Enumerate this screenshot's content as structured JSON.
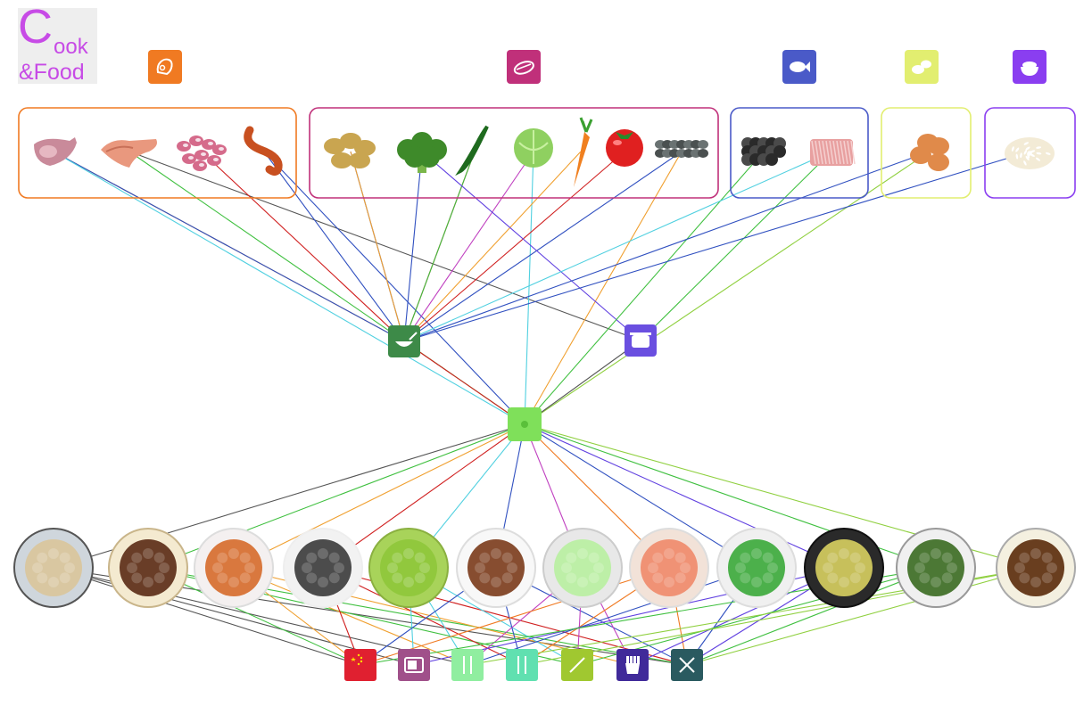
{
  "logo": {
    "big_letter": "C",
    "rest": "ook",
    "line2": "&Food",
    "color": "#c74be6"
  },
  "colors": {
    "meat": "#f07a22",
    "vegetable": "#c0307a",
    "seafood": "#4a5ac8",
    "egg": "#e2ee70",
    "staple": "#8a3ef0",
    "method_stir_fry": "#3d8a48",
    "method_stew": "#6a4fe0",
    "hub": "#7fe05a",
    "cuisine": [
      "#e02030",
      "#a0508a",
      "#90eea0",
      "#60e0b0",
      "#a0c830",
      "#402a9a",
      "#2a5a60"
    ]
  },
  "categories": [
    {
      "id": "meat",
      "icon": "meat-icon",
      "color": "#f07a22",
      "items": [
        {
          "id": "pork",
          "icon": "pork-chop-icon"
        },
        {
          "id": "chicken_wing",
          "icon": "chicken-wing-icon"
        },
        {
          "id": "beans",
          "icon": "beans-icon"
        },
        {
          "id": "sausage",
          "icon": "sausage-icon"
        }
      ]
    },
    {
      "id": "vegetable",
      "icon": "vegetable-icon",
      "color": "#c0307a",
      "items": [
        {
          "id": "potato",
          "icon": "potato-icon"
        },
        {
          "id": "broccoli",
          "icon": "broccoli-icon"
        },
        {
          "id": "pepper",
          "icon": "green-pepper-icon"
        },
        {
          "id": "cabbage",
          "icon": "cabbage-icon"
        },
        {
          "id": "carrot",
          "icon": "carrot-icon"
        },
        {
          "id": "tomato",
          "icon": "tomato-icon"
        },
        {
          "id": "fungus",
          "icon": "black-fungus-icon"
        }
      ]
    },
    {
      "id": "seafood",
      "icon": "fish-icon",
      "color": "#4a5ac8",
      "items": [
        {
          "id": "seaweed",
          "icon": "seaweed-icon"
        },
        {
          "id": "shrimp",
          "icon": "dried-shrimp-icon"
        }
      ]
    },
    {
      "id": "egg",
      "icon": "egg-icon",
      "color": "#e2ee70",
      "items": [
        {
          "id": "eggs",
          "icon": "eggs-icon"
        }
      ]
    },
    {
      "id": "staple",
      "icon": "rice-bowl-icon",
      "color": "#8a3ef0",
      "items": [
        {
          "id": "rice",
          "icon": "rice-icon"
        }
      ]
    }
  ],
  "methods": [
    {
      "id": "stir_fry",
      "icon": "wok-icon",
      "color": "#3d8a48"
    },
    {
      "id": "stew",
      "icon": "pot-icon",
      "color": "#6a4fe0"
    }
  ],
  "hub": {
    "id": "hub",
    "icon": "hub-icon",
    "color": "#7fe05a"
  },
  "dishes": [
    {
      "id": "chicken_soup",
      "icon": "chicken-soup-icon"
    },
    {
      "id": "braised_wings",
      "icon": "braised-wings-icon"
    },
    {
      "id": "carrot_potato",
      "icon": "carrot-potato-dish-icon"
    },
    {
      "id": "fungus_stirfry",
      "icon": "fungus-stirfry-icon"
    },
    {
      "id": "pepper_strips",
      "icon": "pepper-strips-icon"
    },
    {
      "id": "grilled_chicken",
      "icon": "grilled-chicken-icon"
    },
    {
      "id": "cabbage_dish",
      "icon": "cabbage-dish-icon"
    },
    {
      "id": "tomato_potato",
      "icon": "tomato-potato-icon"
    },
    {
      "id": "broccoli_dish",
      "icon": "broccoli-dish-icon"
    },
    {
      "id": "fried_rice",
      "icon": "fried-rice-icon"
    },
    {
      "id": "seaweed_soup",
      "icon": "seaweed-soup-icon"
    },
    {
      "id": "tea_eggs",
      "icon": "tea-eggs-icon"
    }
  ],
  "cuisines": [
    {
      "id": "chinese",
      "icon": "china-flag-icon",
      "color": "#e02030"
    },
    {
      "id": "microwave",
      "icon": "microwave-icon",
      "color": "#a0508a"
    },
    {
      "id": "light",
      "icon": "fork-knife-icon",
      "color": "#90eea0"
    },
    {
      "id": "chopsticks",
      "icon": "chopsticks-icon",
      "color": "#60e0b0"
    },
    {
      "id": "quick",
      "icon": "spatula-icon",
      "color": "#a0c830"
    },
    {
      "id": "fastfood",
      "icon": "fries-icon",
      "color": "#402a9a"
    },
    {
      "id": "western",
      "icon": "knife-fork-icon",
      "color": "#2a5a60"
    }
  ],
  "links": [
    [
      "pork",
      "stir_fry",
      "#f0a030"
    ],
    [
      "pork",
      "stir_fry",
      "#3050c0"
    ],
    [
      "pork",
      "hub",
      "#50d0e0"
    ],
    [
      "chicken_wing",
      "stew",
      "#555555"
    ],
    [
      "chicken_wing",
      "hub",
      "#40c040"
    ],
    [
      "beans",
      "stir_fry",
      "#d02020"
    ],
    [
      "sausage",
      "stir_fry",
      "#3050c0"
    ],
    [
      "sausage",
      "hub",
      "#3050c0"
    ],
    [
      "potato",
      "stir_fry",
      "#3050c0"
    ],
    [
      "potato",
      "stir_fry",
      "#f0a030"
    ],
    [
      "broccoli",
      "stir_fry",
      "#3050c0"
    ],
    [
      "pepper",
      "stir_fry",
      "#d02020"
    ],
    [
      "pepper",
      "stir_fry",
      "#40c040"
    ],
    [
      "cabbage",
      "stir_fry",
      "#c040c0"
    ],
    [
      "cabbage",
      "hub",
      "#50d0e0"
    ],
    [
      "carrot",
      "stir_fry",
      "#f0a030"
    ],
    [
      "tomato",
      "stir_fry",
      "#d02020"
    ],
    [
      "fungus",
      "stir_fry",
      "#3050c0"
    ],
    [
      "fungus",
      "hub",
      "#f0a030"
    ],
    [
      "broccoli",
      "stew",
      "#6040e0"
    ],
    [
      "seaweed",
      "hub",
      "#40c040"
    ],
    [
      "shrimp",
      "stir_fry",
      "#50d0e0"
    ],
    [
      "shrimp",
      "stew",
      "#40c040"
    ],
    [
      "eggs",
      "stir_fry",
      "#3050c0"
    ],
    [
      "eggs",
      "hub",
      "#90d040"
    ],
    [
      "rice",
      "stir_fry",
      "#3050c0"
    ],
    [
      "stir_fry",
      "hub",
      "#d02020"
    ],
    [
      "stew",
      "hub",
      "#555555"
    ],
    [
      "hub",
      "chicken_soup",
      "#555555"
    ],
    [
      "hub",
      "braised_wings",
      "#40c040"
    ],
    [
      "hub",
      "carrot_potato",
      "#f0a030"
    ],
    [
      "hub",
      "fungus_stirfry",
      "#d02020"
    ],
    [
      "hub",
      "pepper_strips",
      "#50d0e0"
    ],
    [
      "hub",
      "grilled_chicken",
      "#3050c0"
    ],
    [
      "hub",
      "cabbage_dish",
      "#c040c0"
    ],
    [
      "hub",
      "tomato_potato",
      "#f07a22"
    ],
    [
      "hub",
      "broccoli_dish",
      "#3050c0"
    ],
    [
      "hub",
      "fried_rice",
      "#6040e0"
    ],
    [
      "hub",
      "seaweed_soup",
      "#40c040"
    ],
    [
      "hub",
      "tea_eggs",
      "#90d040"
    ],
    [
      "chicken_soup",
      "chinese",
      "#555555"
    ],
    [
      "chicken_soup",
      "microwave",
      "#555555"
    ],
    [
      "chicken_soup",
      "light",
      "#555555"
    ],
    [
      "chicken_soup",
      "western",
      "#555555"
    ],
    [
      "braised_wings",
      "chinese",
      "#40c040"
    ],
    [
      "braised_wings",
      "quick",
      "#40c040"
    ],
    [
      "braised_wings",
      "western",
      "#40c040"
    ],
    [
      "carrot_potato",
      "chinese",
      "#f0a030"
    ],
    [
      "carrot_potato",
      "light",
      "#f0a030"
    ],
    [
      "carrot_potato",
      "fastfood",
      "#f0a030"
    ],
    [
      "fungus_stirfry",
      "chinese",
      "#d02020"
    ],
    [
      "fungus_stirfry",
      "chopsticks",
      "#d02020"
    ],
    [
      "fungus_stirfry",
      "western",
      "#d02020"
    ],
    [
      "pepper_strips",
      "microwave",
      "#50d0e0"
    ],
    [
      "pepper_strips",
      "light",
      "#50d0e0"
    ],
    [
      "pepper_strips",
      "quick",
      "#50d0e0"
    ],
    [
      "grilled_chicken",
      "chinese",
      "#3050c0"
    ],
    [
      "grilled_chicken",
      "chopsticks",
      "#3050c0"
    ],
    [
      "grilled_chicken",
      "western",
      "#3050c0"
    ],
    [
      "cabbage_dish",
      "light",
      "#c040c0"
    ],
    [
      "cabbage_dish",
      "quick",
      "#c040c0"
    ],
    [
      "cabbage_dish",
      "fastfood",
      "#c040c0"
    ],
    [
      "tomato_potato",
      "chinese",
      "#f07a22"
    ],
    [
      "tomato_potato",
      "chopsticks",
      "#f07a22"
    ],
    [
      "tomato_potato",
      "western",
      "#f07a22"
    ],
    [
      "broccoli_dish",
      "light",
      "#3050c0"
    ],
    [
      "broccoli_dish",
      "western",
      "#3050c0"
    ],
    [
      "fried_rice",
      "microwave",
      "#6040e0"
    ],
    [
      "fried_rice",
      "fastfood",
      "#6040e0"
    ],
    [
      "fried_rice",
      "western",
      "#6040e0"
    ],
    [
      "seaweed_soup",
      "chinese",
      "#40c040"
    ],
    [
      "seaweed_soup",
      "quick",
      "#40c040"
    ],
    [
      "seaweed_soup",
      "western",
      "#40c040"
    ],
    [
      "tea_eggs",
      "light",
      "#90d040"
    ],
    [
      "tea_eggs",
      "chopsticks",
      "#90d040"
    ],
    [
      "tea_eggs",
      "western",
      "#90d040"
    ]
  ]
}
